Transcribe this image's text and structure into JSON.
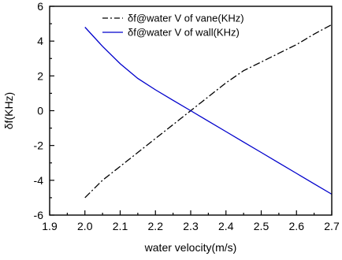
{
  "chart_data": {
    "type": "line",
    "title": "",
    "xlabel": "water velocity(m/s)",
    "ylabel": "δf(KHz)",
    "xlim": [
      1.9,
      2.7
    ],
    "ylim": [
      -6,
      6
    ],
    "xticks": [
      "1.9",
      "2.0",
      "2.1",
      "2.2",
      "2.3",
      "2.4",
      "2.5",
      "2.6",
      "2.7"
    ],
    "yticks": [
      "-6",
      "-4",
      "-2",
      "0",
      "2",
      "4",
      "6"
    ],
    "legend_position": "top",
    "grid": false,
    "series": [
      {
        "name": "δf@water V of vane(KHz)",
        "color": "#000000",
        "line_style": "dash-dot",
        "x": [
          2.0,
          2.05,
          2.1,
          2.15,
          2.2,
          2.25,
          2.3,
          2.35,
          2.4,
          2.45,
          2.5,
          2.55,
          2.6,
          2.65,
          2.7
        ],
        "y": [
          -5.0,
          -4.0,
          -3.2,
          -2.4,
          -1.6,
          -0.8,
          0.0,
          0.8,
          1.6,
          2.3,
          2.8,
          3.3,
          3.8,
          4.4,
          4.95
        ]
      },
      {
        "name": "δf@water V of wall(KHz)",
        "color": "#0000cc",
        "line_style": "solid",
        "x": [
          2.0,
          2.05,
          2.1,
          2.15,
          2.2,
          2.25,
          2.3,
          2.35,
          2.4,
          2.45,
          2.5,
          2.55,
          2.6,
          2.65,
          2.7
        ],
        "y": [
          4.8,
          3.7,
          2.7,
          1.85,
          1.2,
          0.6,
          0.0,
          -0.6,
          -1.2,
          -1.8,
          -2.4,
          -3.0,
          -3.6,
          -4.2,
          -4.8
        ]
      }
    ]
  }
}
